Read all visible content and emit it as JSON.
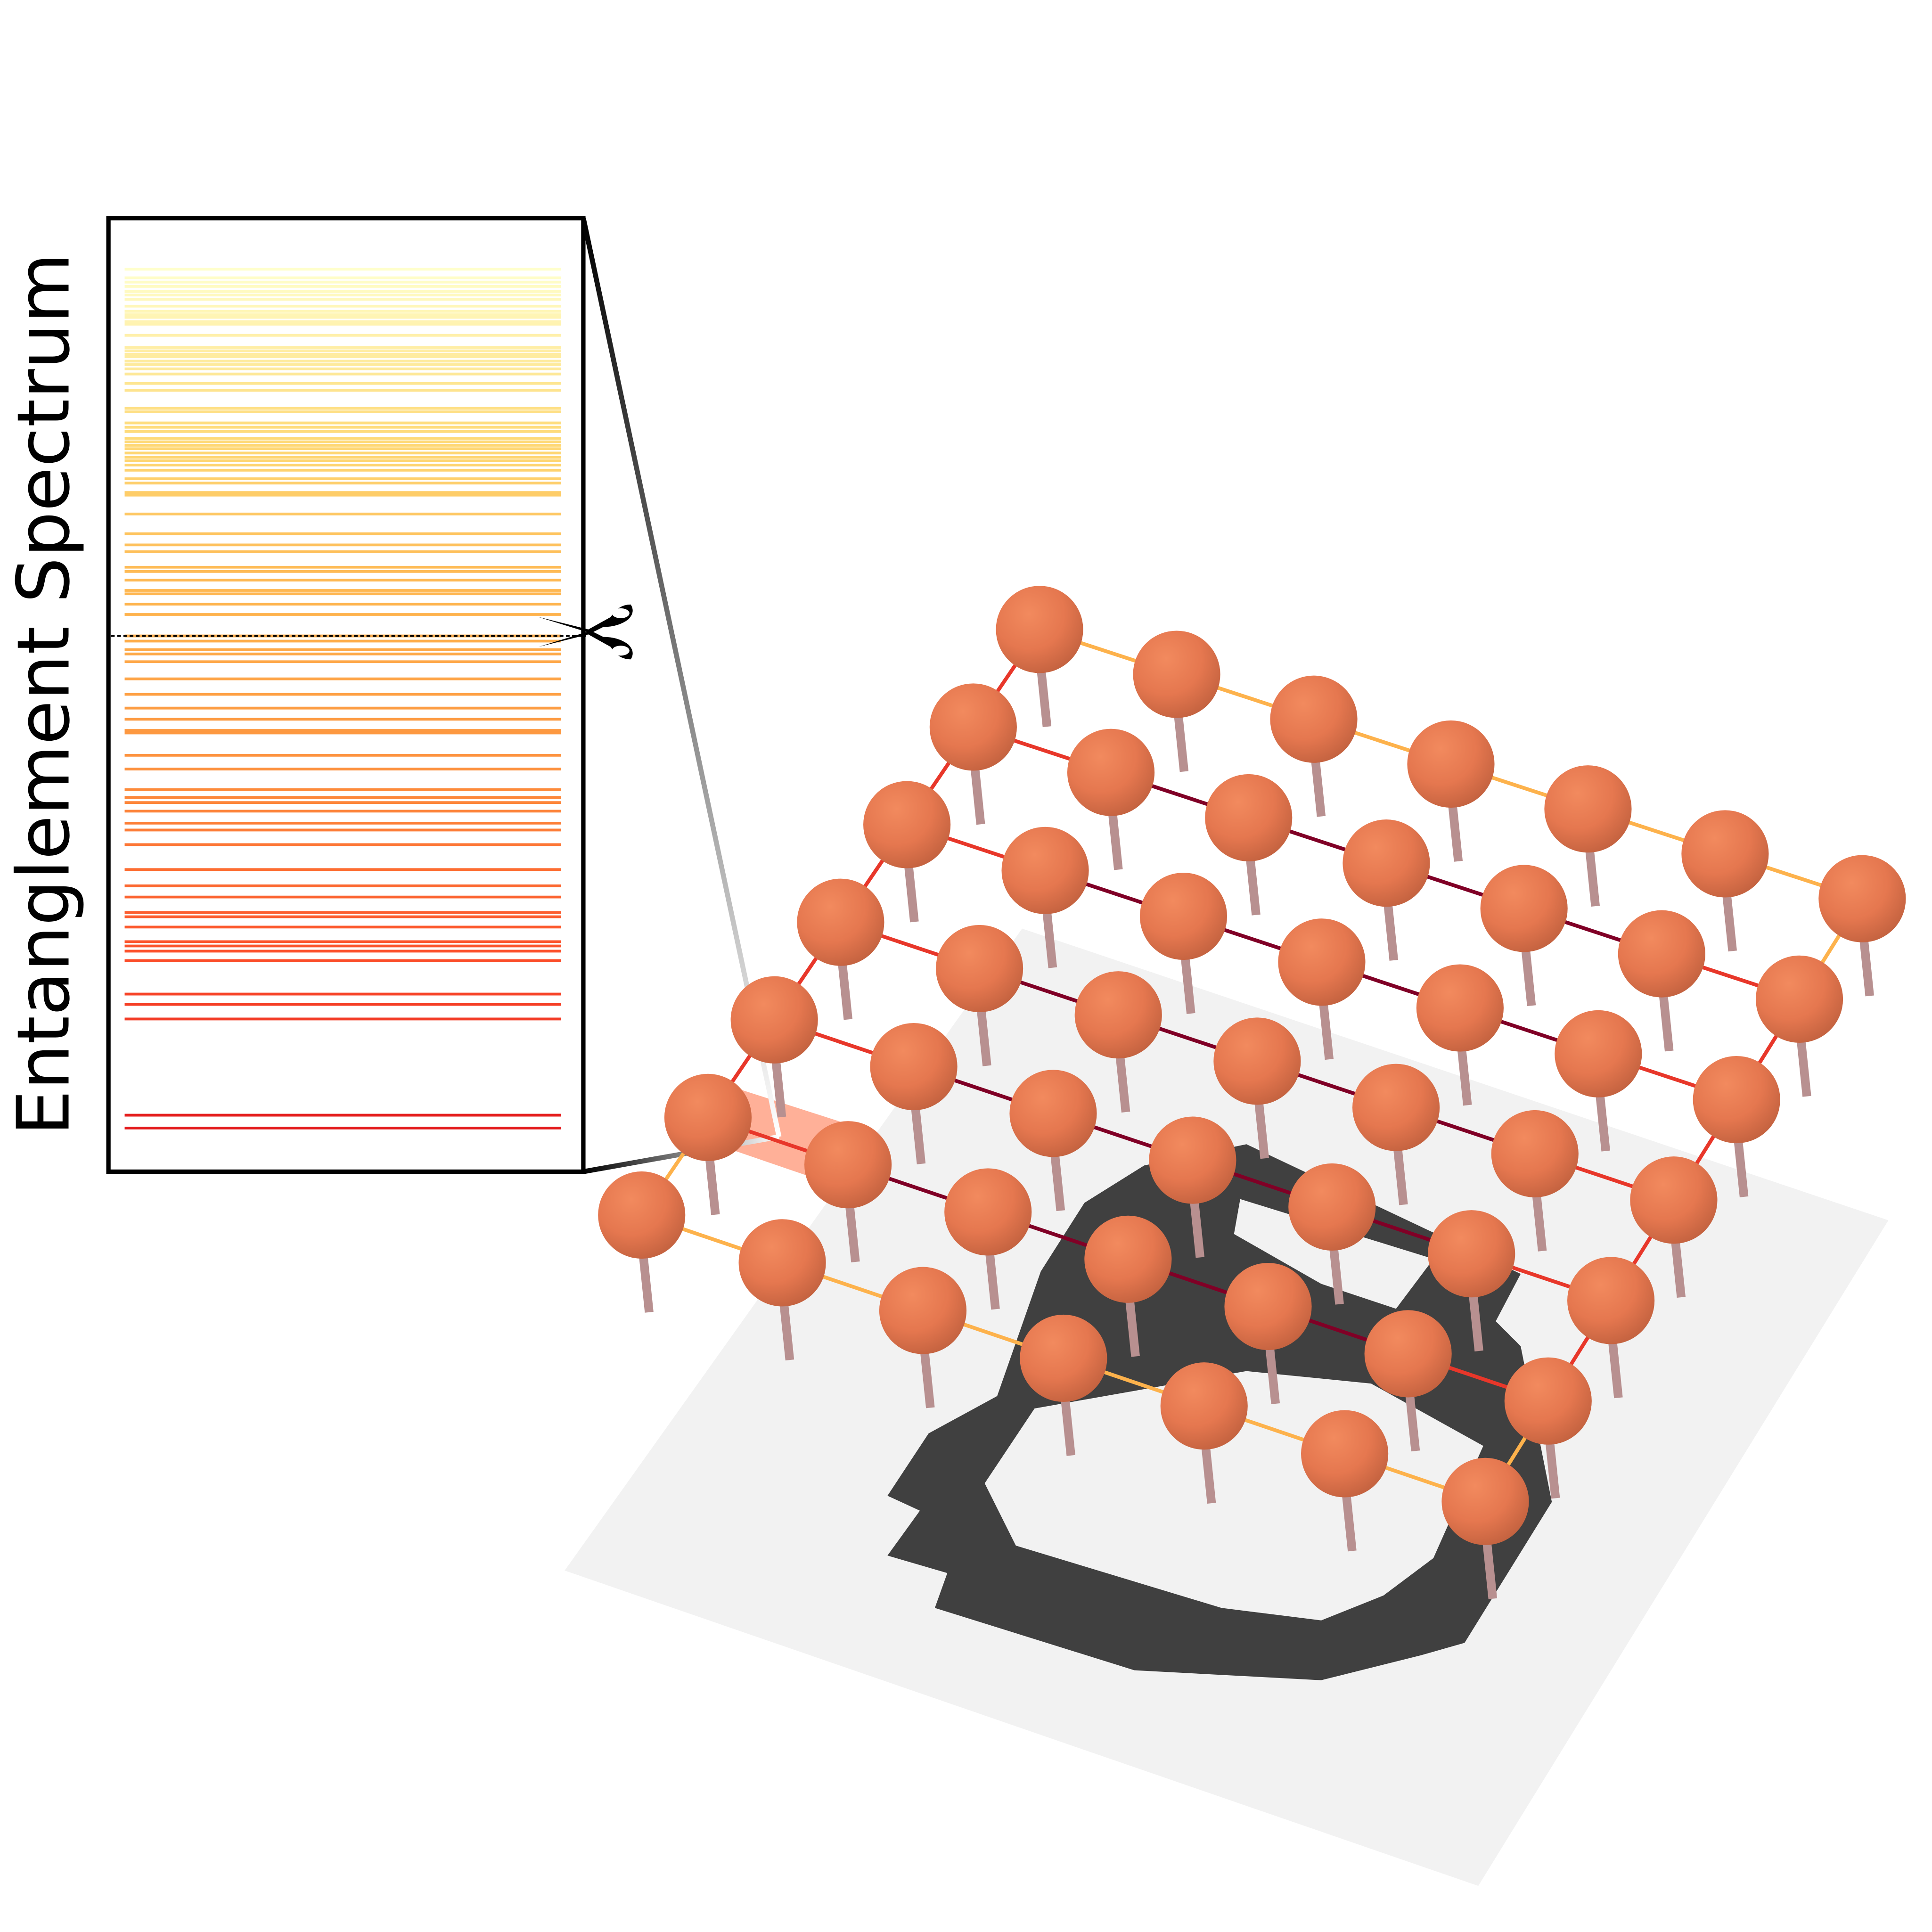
{
  "title": "Entanglement Spectrum",
  "colors": {
    "ball_light": "#f28a5e",
    "ball_dark": "#c8603e",
    "pin": "#b89090",
    "floor": "#f2f2f2",
    "region": "#404040",
    "edge_outer": "#fdb24c",
    "edge_red": "#e8372a",
    "edge_inner": "#800026",
    "spectrum_top": "#ffffcc",
    "spectrum_bottom": "#e31a1c"
  },
  "lattice": {
    "rows": 7,
    "cols": 7
  },
  "cut_icon": "scissors-icon",
  "chart_data": {
    "type": "spectrum",
    "title": "Entanglement Spectrum",
    "levels": [
      100,
      99,
      98.5,
      98,
      97.4,
      97,
      96.5,
      95.7,
      95.1,
      94.7,
      94.4,
      93.9,
      93.6,
      92.3,
      90.9,
      90.5,
      90.1,
      89.8,
      89.3,
      88.9,
      88.4,
      87.8,
      86.7,
      85.9,
      83.8,
      83.4,
      82.1,
      81.6,
      81.1,
      80.3,
      79.9,
      79.5,
      79.1,
      78.6,
      78.1,
      77.7,
      77.2,
      76.6,
      75.6,
      75.1,
      74,
      73.7,
      71.5,
      69.2,
      67.9,
      67.1,
      65.3,
      64.8,
      63.8,
      62.6,
      62.2,
      61,
      59.8,
      57.3,
      56.7,
      55.7,
      55.2,
      54.3,
      52.3,
      50.5,
      48.9,
      47.6,
      46.3,
      46,
      43.4,
      41.8,
      39.4,
      38.5,
      37.9,
      36.9,
      35.5,
      34.7,
      33,
      30.1,
      28.2,
      26.9,
      25.1,
      24.6,
      23.4,
      21.7,
      21.2,
      20.6,
      19.5,
      15.6,
      14.4,
      12.7,
      1.5,
      0
    ],
    "cut_level": 57.3
  }
}
